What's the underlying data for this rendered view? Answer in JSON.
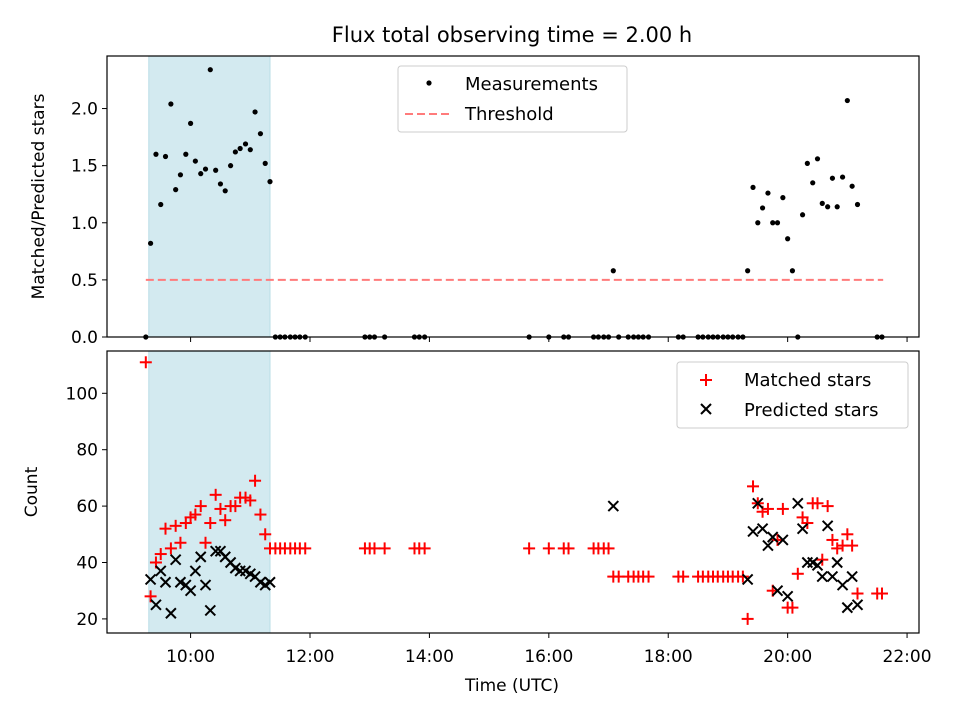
{
  "title": "Flux total observing time = 2.00 h",
  "colors": {
    "marker": "#000000",
    "threshold": "#ff7b7b",
    "matched": "#ff0000",
    "predicted": "#000000",
    "highlight": "#d3eaf0",
    "highlight_edge": "#b9dde6"
  },
  "chart_data": [
    {
      "type": "scatter",
      "name": "ratio-panel",
      "ylabel": "Matched/Predicted stars",
      "xlabel": "",
      "xlim": [
        8.6,
        22.2
      ],
      "ylim": [
        0,
        2.46
      ],
      "yticks": [
        0.0,
        0.5,
        1.0,
        1.5,
        2.0
      ],
      "ytick_labels": [
        "0.0",
        "0.5",
        "1.0",
        "1.5",
        "2.0"
      ],
      "highlight_span": [
        9.3,
        11.33
      ],
      "legend": {
        "location": "top-center",
        "measurements_label": "Measurements",
        "threshold_label": "Threshold"
      },
      "threshold": {
        "y": 0.5,
        "x_range": [
          9.25,
          21.6
        ]
      },
      "measurements": {
        "x": [
          9.25,
          9.33,
          9.42,
          9.5,
          9.58,
          9.67,
          9.75,
          9.83,
          9.92,
          10.0,
          10.08,
          10.17,
          10.25,
          10.33,
          10.42,
          10.5,
          10.58,
          10.67,
          10.75,
          10.83,
          10.92,
          11.0,
          11.08,
          11.17,
          11.25,
          11.33,
          11.42,
          11.5,
          11.58,
          11.67,
          11.75,
          11.83,
          11.92,
          12.92,
          13.0,
          13.08,
          13.25,
          13.75,
          13.83,
          13.92,
          15.67,
          16.0,
          16.25,
          16.33,
          16.75,
          16.83,
          16.92,
          17.0,
          17.08,
          17.17,
          17.33,
          17.42,
          17.5,
          17.58,
          17.67,
          18.17,
          18.25,
          18.5,
          18.58,
          18.67,
          18.75,
          18.83,
          18.92,
          19.0,
          19.08,
          19.17,
          19.25,
          19.33,
          19.42,
          19.5,
          19.58,
          19.67,
          19.75,
          19.83,
          19.92,
          20.0,
          20.08,
          20.17,
          20.25,
          20.33,
          20.42,
          20.5,
          20.58,
          20.67,
          20.75,
          20.83,
          20.92,
          21.0,
          21.08,
          21.17,
          21.5,
          21.58
        ],
        "y": [
          0.0,
          0.82,
          1.6,
          1.16,
          1.58,
          2.04,
          1.29,
          1.42,
          1.6,
          1.87,
          1.54,
          1.43,
          1.47,
          2.34,
          1.46,
          1.34,
          1.28,
          1.5,
          1.62,
          1.65,
          1.69,
          1.64,
          1.97,
          1.78,
          1.52,
          1.36,
          0.0,
          0.0,
          0.0,
          0.0,
          0.0,
          0.0,
          0.0,
          0.0,
          0.0,
          0.0,
          0.0,
          0.0,
          0.0,
          0.0,
          0.0,
          0.0,
          0.0,
          0.0,
          0.0,
          0.0,
          0.0,
          0.0,
          0.58,
          0.0,
          0.0,
          0.0,
          0.0,
          0.0,
          0.0,
          0.0,
          0.0,
          0.0,
          0.0,
          0.0,
          0.0,
          0.0,
          0.0,
          0.0,
          0.0,
          0.0,
          0.0,
          0.58,
          1.31,
          1.0,
          1.13,
          1.26,
          1.0,
          1.0,
          1.22,
          0.86,
          0.58,
          0.0,
          1.07,
          1.52,
          1.35,
          1.56,
          1.17,
          1.14,
          1.39,
          1.14,
          1.4,
          2.07,
          1.32,
          1.16,
          0.0,
          0.0
        ]
      }
    },
    {
      "type": "scatter",
      "name": "count-panel",
      "ylabel": "Count",
      "xlabel": "Time (UTC)",
      "xlim": [
        8.6,
        22.2
      ],
      "ylim": [
        15,
        115
      ],
      "yticks": [
        20,
        40,
        60,
        80,
        100
      ],
      "ytick_labels": [
        "20",
        "40",
        "60",
        "80",
        "100"
      ],
      "xticks": [
        10,
        12,
        14,
        16,
        18,
        20,
        22
      ],
      "xtick_labels": [
        "10:00",
        "12:00",
        "14:00",
        "16:00",
        "18:00",
        "20:00",
        "22:00"
      ],
      "highlight_span": [
        9.3,
        11.33
      ],
      "legend": {
        "location": "top-right",
        "matched_label": "Matched stars",
        "predicted_label": "Predicted stars"
      },
      "matched": {
        "x": [
          9.25,
          9.33,
          9.42,
          9.5,
          9.58,
          9.67,
          9.75,
          9.83,
          9.92,
          10.0,
          10.08,
          10.17,
          10.25,
          10.33,
          10.42,
          10.5,
          10.58,
          10.67,
          10.75,
          10.83,
          10.92,
          11.0,
          11.08,
          11.17,
          11.25,
          11.33,
          11.42,
          11.5,
          11.58,
          11.67,
          11.75,
          11.83,
          11.92,
          12.92,
          13.0,
          13.08,
          13.25,
          13.75,
          13.83,
          13.92,
          15.67,
          16.0,
          16.25,
          16.33,
          16.75,
          16.83,
          16.92,
          17.0,
          17.08,
          17.17,
          17.33,
          17.42,
          17.5,
          17.58,
          17.67,
          18.17,
          18.25,
          18.5,
          18.58,
          18.67,
          18.75,
          18.83,
          18.92,
          19.0,
          19.08,
          19.17,
          19.25,
          19.33,
          19.42,
          19.5,
          19.58,
          19.67,
          19.75,
          19.83,
          19.92,
          20.0,
          20.08,
          20.17,
          20.25,
          20.33,
          20.42,
          20.5,
          20.58,
          20.67,
          20.75,
          20.83,
          20.92,
          21.0,
          21.08,
          21.17,
          21.5,
          21.58
        ],
        "y": [
          111,
          28,
          40,
          43,
          52,
          45,
          53,
          47,
          54,
          56,
          57,
          60,
          47,
          54,
          64,
          59,
          55,
          60,
          60,
          63,
          63,
          62,
          69,
          57,
          50,
          45,
          45,
          45,
          45,
          45,
          45,
          45,
          45,
          45,
          45,
          45,
          45,
          45,
          45,
          45,
          45,
          45,
          45,
          45,
          45,
          45,
          45,
          45,
          35,
          35,
          35,
          35,
          35,
          35,
          35,
          35,
          35,
          35,
          35,
          35,
          35,
          35,
          35,
          35,
          35,
          35,
          35,
          20,
          67,
          61,
          58,
          59,
          30,
          48,
          59,
          24,
          24,
          36,
          56,
          54,
          61,
          61,
          41,
          60,
          48,
          45,
          46,
          50,
          46,
          29,
          29,
          29
        ]
      },
      "predicted": {
        "x": [
          9.33,
          9.42,
          9.5,
          9.58,
          9.67,
          9.75,
          9.83,
          9.92,
          10.0,
          10.08,
          10.17,
          10.25,
          10.33,
          10.42,
          10.5,
          10.58,
          10.67,
          10.75,
          10.83,
          10.92,
          11.0,
          11.08,
          11.17,
          11.25,
          11.33,
          17.08,
          19.33,
          19.42,
          19.5,
          19.58,
          19.67,
          19.75,
          19.83,
          19.92,
          20.0,
          20.17,
          20.25,
          20.33,
          20.42,
          20.5,
          20.58,
          20.67,
          20.75,
          20.83,
          20.92,
          21.0,
          21.08,
          21.17
        ],
        "y": [
          34,
          25,
          37,
          33,
          22,
          41,
          33,
          32,
          30,
          37,
          42,
          32,
          23,
          44,
          44,
          42,
          40,
          38,
          37,
          37,
          36,
          35,
          33,
          32,
          33,
          60,
          34,
          51,
          61,
          52,
          46,
          49,
          30,
          48,
          28,
          61,
          52,
          40,
          40,
          39,
          35,
          53,
          35,
          40,
          32,
          24,
          35,
          25
        ]
      }
    }
  ]
}
